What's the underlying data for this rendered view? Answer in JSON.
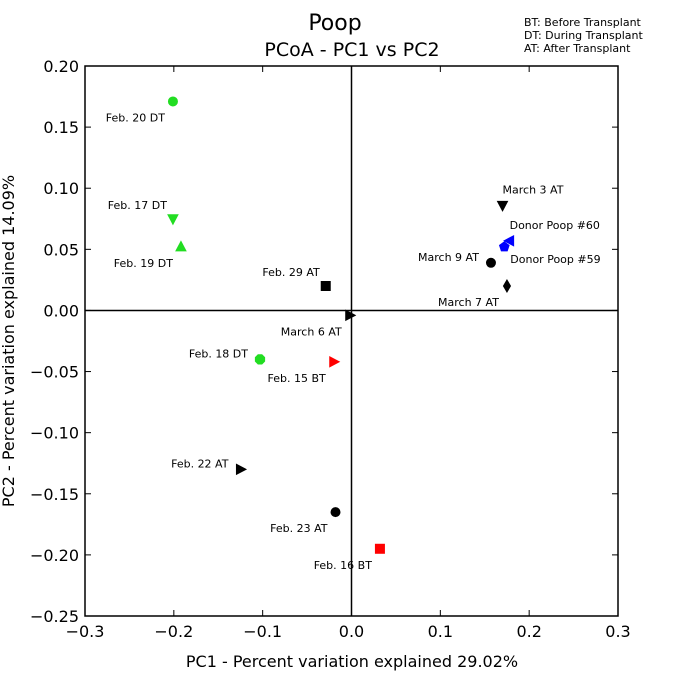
{
  "chart_data": {
    "type": "scatter",
    "title": "Poop",
    "subtitle": "PCoA - PC1 vs PC2",
    "xlabel": "PC1 - Percent variation explained 29.02%",
    "ylabel": "PC2 - Percent variation explained 14.09%",
    "xlim": [
      -0.3,
      0.3
    ],
    "ylim": [
      -0.25,
      0.2
    ],
    "xticks": [
      -0.3,
      -0.2,
      -0.1,
      0.0,
      0.1,
      0.2,
      0.3
    ],
    "xtick_labels": [
      "−0.3",
      "−0.2",
      "−0.1",
      "0.0",
      "0.1",
      "0.2",
      "0.3"
    ],
    "yticks": [
      0.2,
      0.15,
      0.1,
      0.05,
      0.0,
      -0.05,
      -0.1,
      -0.15,
      -0.2,
      -0.25
    ],
    "ytick_labels": [
      "0.20",
      "0.15",
      "0.10",
      "0.05",
      "0.00",
      "−0.05",
      "−0.10",
      "−0.15",
      "−0.20",
      "−0.25"
    ],
    "legend": [
      "BT: Before Transplant",
      "DT: During Transplant",
      "AT: After Transplant"
    ],
    "points": [
      {
        "label": "Feb. 20 DT",
        "x": -0.201,
        "y": 0.171,
        "color": "#22dd22",
        "marker": "circle",
        "label_pos": "below-left"
      },
      {
        "label": "Feb. 17 DT",
        "x": -0.201,
        "y": 0.075,
        "color": "#22dd22",
        "marker": "triangle-down",
        "label_pos": "above-left"
      },
      {
        "label": "Feb. 19 DT",
        "x": -0.192,
        "y": 0.052,
        "color": "#22dd22",
        "marker": "triangle-up",
        "label_pos": "below-left"
      },
      {
        "label": "Feb. 29 AT",
        "x": -0.029,
        "y": 0.02,
        "color": "#000000",
        "marker": "square",
        "label_pos": "above-left"
      },
      {
        "label": "March 6 AT",
        "x": -0.002,
        "y": -0.004,
        "color": "#000000",
        "marker": "triangle-right",
        "label_pos": "below-left"
      },
      {
        "label": "Feb. 18 DT",
        "x": -0.103,
        "y": -0.04,
        "color": "#22dd22",
        "marker": "octagon",
        "label_pos": "left"
      },
      {
        "label": "Feb. 15 BT",
        "x": -0.02,
        "y": -0.042,
        "color": "#ff0000",
        "marker": "triangle-right",
        "label_pos": "below-left"
      },
      {
        "label": "Feb. 22 AT",
        "x": -0.125,
        "y": -0.13,
        "color": "#000000",
        "marker": "triangle-right",
        "label_pos": "left"
      },
      {
        "label": "Feb. 23 AT",
        "x": -0.018,
        "y": -0.165,
        "color": "#000000",
        "marker": "circle",
        "label_pos": "below-left"
      },
      {
        "label": "Feb. 16 BT",
        "x": 0.032,
        "y": -0.195,
        "color": "#ff0000",
        "marker": "square",
        "label_pos": "below-left"
      },
      {
        "label": "March 3 AT",
        "x": 0.17,
        "y": 0.086,
        "color": "#000000",
        "marker": "triangle-down",
        "label_pos": "above-right"
      },
      {
        "label": "Donor Poop #60",
        "x": 0.178,
        "y": 0.057,
        "color": "#0000ff",
        "marker": "triangle-left",
        "label_pos": "above-right"
      },
      {
        "label": "Donor Poop #59",
        "x": 0.172,
        "y": 0.052,
        "color": "#0000ff",
        "marker": "pentagon",
        "label_pos": "below-right"
      },
      {
        "label": "March 9 AT",
        "x": 0.157,
        "y": 0.039,
        "color": "#000000",
        "marker": "circle",
        "label_pos": "left"
      },
      {
        "label": "March 7 AT",
        "x": 0.175,
        "y": 0.02,
        "color": "#000000",
        "marker": "diamond",
        "label_pos": "below-left"
      }
    ]
  }
}
